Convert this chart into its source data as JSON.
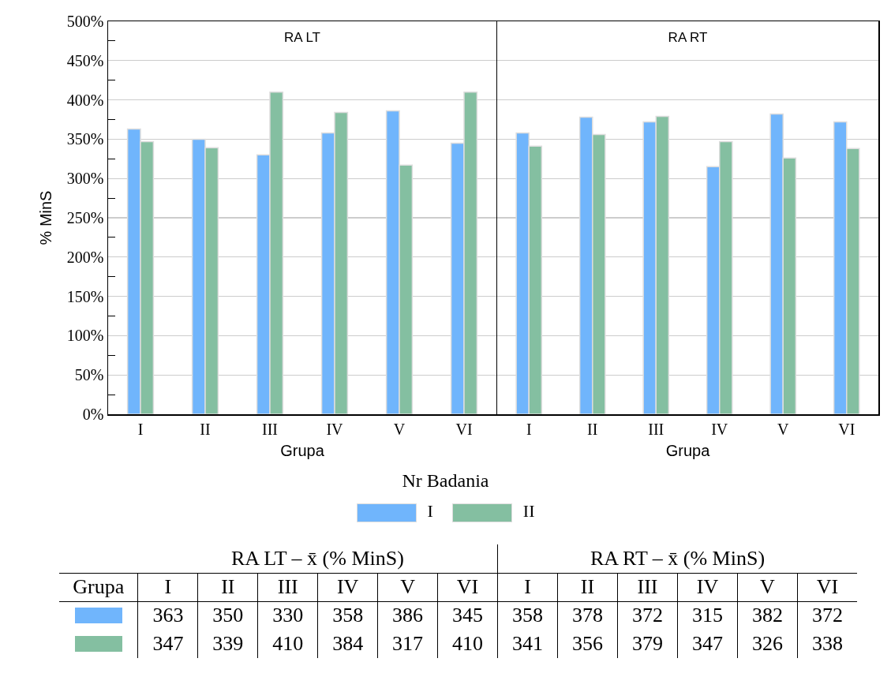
{
  "chart_data": [
    {
      "type": "bar",
      "title": "RA LT",
      "xlabel": "Grupa",
      "ylabel": "% MinS",
      "legend_title": "Nr Badania",
      "legend": "bottom",
      "grid": "y",
      "data_labels": true,
      "annotations": [
        "RA LT – x̄ (% MinS)"
      ],
      "categories": [
        "I",
        "II",
        "III",
        "IV",
        "V",
        "VI"
      ],
      "ylim": [
        0,
        500
      ],
      "yticks": [
        {
          "value": 0,
          "label": "0%"
        },
        {
          "value": 25,
          "label": null
        },
        {
          "value": 50,
          "label": "50%"
        },
        {
          "value": 75,
          "label": null
        },
        {
          "value": 100,
          "label": "100%"
        },
        {
          "value": 125,
          "label": null
        },
        {
          "value": 150,
          "label": "150%"
        },
        {
          "value": 175,
          "label": null
        },
        {
          "value": 200,
          "label": "200%"
        },
        {
          "value": 225,
          "label": null
        },
        {
          "value": 250,
          "label": "250%"
        },
        {
          "value": 275,
          "label": null
        },
        {
          "value": 300,
          "label": "300%"
        },
        {
          "value": 325,
          "label": null
        },
        {
          "value": 350,
          "label": "350%"
        },
        {
          "value": 375,
          "label": null
        },
        {
          "value": 400,
          "label": "400%"
        },
        {
          "value": 425,
          "label": null
        },
        {
          "value": 450,
          "label": "450%"
        },
        {
          "value": 475,
          "label": null
        },
        {
          "value": 500,
          "label": "500%"
        }
      ],
      "series": [
        {
          "name": "I",
          "color": "#70b5fc",
          "values": [
            363,
            350,
            330,
            358,
            386,
            345
          ]
        },
        {
          "name": "II",
          "color": "#84bfa1",
          "values": [
            347,
            339,
            410,
            384,
            317,
            410
          ]
        }
      ]
    },
    {
      "type": "bar",
      "title": "RA RT",
      "xlabel": "Grupa",
      "grid": "y",
      "data_labels": true,
      "tick_labels": "x",
      "annotations": [
        "RA RT – x̄ (% MinS)"
      ],
      "categories": [
        "I",
        "II",
        "III",
        "IV",
        "V",
        "VI"
      ],
      "ylim": [
        0,
        500
      ],
      "yticks": [
        {
          "value": 0,
          "label": null
        },
        {
          "value": 50,
          "label": null
        },
        {
          "value": 100,
          "label": null
        },
        {
          "value": 150,
          "label": null
        },
        {
          "value": 200,
          "label": null
        },
        {
          "value": 250,
          "label": null
        },
        {
          "value": 300,
          "label": null
        },
        {
          "value": 350,
          "label": null
        },
        {
          "value": 400,
          "label": null
        },
        {
          "value": 450,
          "label": null
        },
        {
          "value": 500,
          "label": null
        }
      ],
      "series": [
        {
          "color": "#70b5fc",
          "values": [
            358,
            378,
            372,
            315,
            382,
            372
          ]
        },
        {
          "color": "#84bfa1",
          "values": [
            341,
            356,
            379,
            347,
            326,
            338
          ]
        }
      ]
    }
  ]
}
